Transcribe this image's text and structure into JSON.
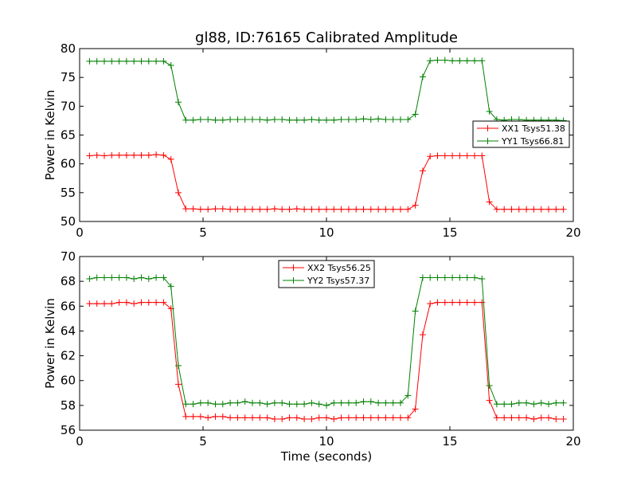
{
  "figure": {
    "title": "gl88, ID:76165 Calibrated Amplitude",
    "xlabel": "Time (seconds)"
  },
  "chart_data": [
    {
      "type": "line",
      "title": "gl88, ID:76165 Calibrated Amplitude",
      "xlabel": "",
      "ylabel": "Power in Kelvin",
      "xlim": [
        0,
        20
      ],
      "ylim": [
        50,
        80
      ],
      "xticks": [
        0,
        5,
        10,
        15,
        20
      ],
      "yticks": [
        50,
        55,
        60,
        65,
        70,
        75,
        80
      ],
      "grid": false,
      "legend": "center-right",
      "x": [
        0.4,
        0.7,
        1.0,
        1.3,
        1.6,
        1.9,
        2.2,
        2.5,
        2.8,
        3.1,
        3.4,
        3.7,
        4.0,
        4.3,
        4.6,
        4.9,
        5.2,
        5.5,
        5.8,
        6.1,
        6.4,
        6.7,
        7.0,
        7.3,
        7.6,
        7.9,
        8.2,
        8.5,
        8.8,
        9.1,
        9.4,
        9.7,
        10.0,
        10.3,
        10.6,
        10.9,
        11.2,
        11.5,
        11.8,
        12.1,
        12.4,
        12.7,
        13.0,
        13.3,
        13.6,
        13.9,
        14.2,
        14.5,
        14.8,
        15.1,
        15.4,
        15.7,
        16.0,
        16.3,
        16.6,
        16.9,
        17.2,
        17.5,
        17.8,
        18.1,
        18.4,
        18.7,
        19.0,
        19.3,
        19.6
      ],
      "series": [
        {
          "name": "XX1 Tsys51.38",
          "color": "#ff0000",
          "values": [
            61.4,
            61.5,
            61.4,
            61.5,
            61.5,
            61.5,
            61.5,
            61.5,
            61.5,
            61.6,
            61.5,
            60.8,
            55.0,
            52.2,
            52.2,
            52.1,
            52.1,
            52.2,
            52.2,
            52.1,
            52.1,
            52.1,
            52.1,
            52.1,
            52.1,
            52.2,
            52.1,
            52.1,
            52.2,
            52.1,
            52.1,
            52.1,
            52.1,
            52.1,
            52.1,
            52.1,
            52.1,
            52.1,
            52.1,
            52.1,
            52.1,
            52.1,
            52.1,
            52.1,
            52.8,
            58.8,
            61.3,
            61.4,
            61.4,
            61.4,
            61.4,
            61.4,
            61.4,
            61.4,
            53.4,
            52.1,
            52.1,
            52.1,
            52.1,
            52.1,
            52.1,
            52.1,
            52.1,
            52.1,
            52.1
          ]
        },
        {
          "name": "YY1 Tsys66.81",
          "color": "#008000",
          "values": [
            77.8,
            77.8,
            77.8,
            77.8,
            77.8,
            77.8,
            77.8,
            77.8,
            77.8,
            77.8,
            77.8,
            77.1,
            70.7,
            67.6,
            67.6,
            67.7,
            67.7,
            67.6,
            67.6,
            67.7,
            67.7,
            67.7,
            67.7,
            67.7,
            67.6,
            67.7,
            67.7,
            67.6,
            67.6,
            67.6,
            67.7,
            67.6,
            67.6,
            67.6,
            67.7,
            67.7,
            67.7,
            67.8,
            67.7,
            67.8,
            67.7,
            67.7,
            67.7,
            67.7,
            68.6,
            75.1,
            77.9,
            78.0,
            78.0,
            77.9,
            77.9,
            77.9,
            77.9,
            77.9,
            69.1,
            67.7,
            67.6,
            67.7,
            67.7,
            67.6,
            67.6,
            67.6,
            67.6,
            67.6,
            67.5
          ]
        }
      ]
    },
    {
      "type": "line",
      "title": "",
      "xlabel": "Time (seconds)",
      "ylabel": "Power in Kelvin",
      "xlim": [
        0,
        20
      ],
      "ylim": [
        56,
        70
      ],
      "xticks": [
        0,
        5,
        10,
        15,
        20
      ],
      "yticks": [
        56,
        58,
        60,
        62,
        64,
        66,
        68,
        70
      ],
      "grid": false,
      "legend": "top-center",
      "x": [
        0.4,
        0.7,
        1.0,
        1.3,
        1.6,
        1.9,
        2.2,
        2.5,
        2.8,
        3.1,
        3.4,
        3.7,
        4.0,
        4.3,
        4.6,
        4.9,
        5.2,
        5.5,
        5.8,
        6.1,
        6.4,
        6.7,
        7.0,
        7.3,
        7.6,
        7.9,
        8.2,
        8.5,
        8.8,
        9.1,
        9.4,
        9.7,
        10.0,
        10.3,
        10.6,
        10.9,
        11.2,
        11.5,
        11.8,
        12.1,
        12.4,
        12.7,
        13.0,
        13.3,
        13.6,
        13.9,
        14.2,
        14.5,
        14.8,
        15.1,
        15.4,
        15.7,
        16.0,
        16.3,
        16.6,
        16.9,
        17.2,
        17.5,
        17.8,
        18.1,
        18.4,
        18.7,
        19.0,
        19.3,
        19.6
      ],
      "series": [
        {
          "name": "XX2 Tsys56.25",
          "color": "#ff0000",
          "values": [
            66.2,
            66.2,
            66.2,
            66.2,
            66.3,
            66.3,
            66.2,
            66.3,
            66.3,
            66.3,
            66.3,
            65.8,
            59.7,
            57.1,
            57.1,
            57.1,
            57.0,
            57.1,
            57.1,
            57.0,
            57.0,
            57.0,
            57.0,
            57.0,
            57.0,
            56.9,
            56.9,
            57.0,
            57.0,
            56.9,
            56.9,
            57.0,
            57.0,
            56.9,
            57.0,
            57.0,
            57.0,
            57.0,
            57.0,
            57.0,
            57.0,
            57.0,
            57.0,
            57.0,
            57.7,
            63.7,
            66.2,
            66.3,
            66.3,
            66.3,
            66.3,
            66.3,
            66.3,
            66.3,
            58.4,
            57.0,
            57.0,
            57.0,
            57.0,
            57.0,
            56.9,
            57.0,
            57.0,
            56.9,
            56.9
          ]
        },
        {
          "name": "YY2 Tsys57.37",
          "color": "#008000",
          "values": [
            68.2,
            68.3,
            68.3,
            68.3,
            68.3,
            68.3,
            68.2,
            68.3,
            68.2,
            68.3,
            68.3,
            67.6,
            61.2,
            58.1,
            58.1,
            58.2,
            58.2,
            58.1,
            58.1,
            58.2,
            58.2,
            58.3,
            58.2,
            58.2,
            58.1,
            58.2,
            58.2,
            58.1,
            58.1,
            58.1,
            58.2,
            58.1,
            58.0,
            58.2,
            58.2,
            58.2,
            58.2,
            58.3,
            58.3,
            58.2,
            58.2,
            58.2,
            58.2,
            58.8,
            65.6,
            68.3,
            68.3,
            68.3,
            68.3,
            68.3,
            68.3,
            68.3,
            68.3,
            68.2,
            59.6,
            58.1,
            58.1,
            58.1,
            58.2,
            58.2,
            58.1,
            58.2,
            58.1,
            58.2,
            58.2
          ]
        }
      ]
    }
  ]
}
